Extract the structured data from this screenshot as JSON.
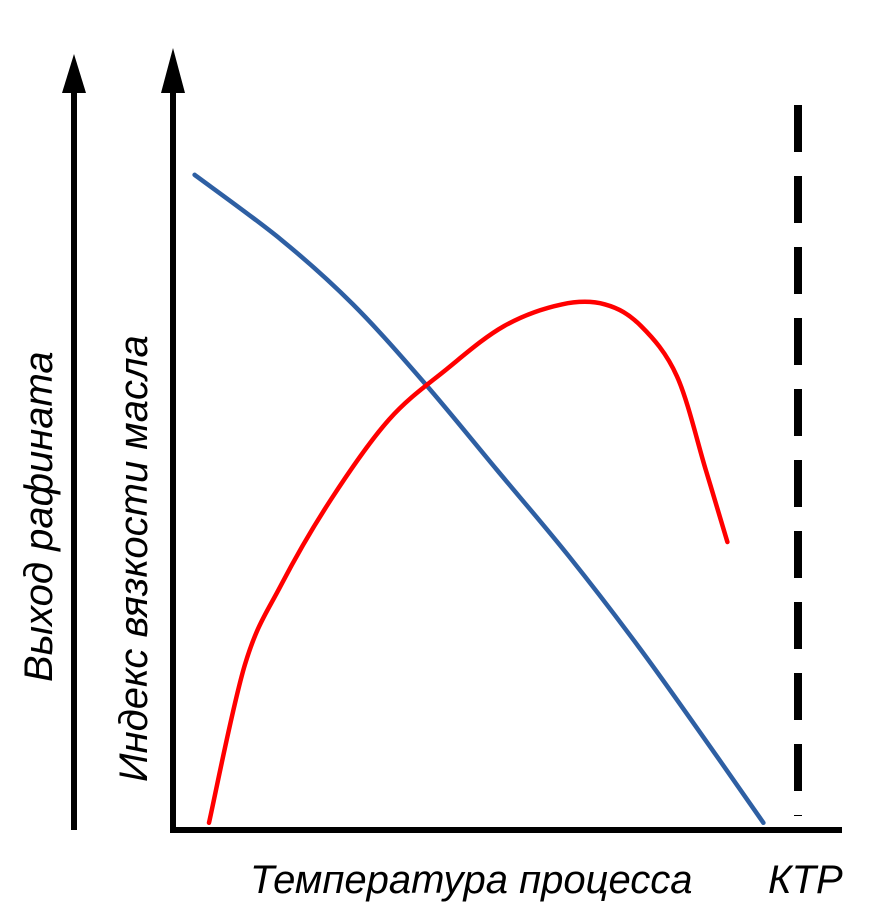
{
  "chart_data": {
    "type": "line",
    "title": "",
    "xlabel": "Температура процесса",
    "ylabels": [
      "Выход рафината",
      "Индекс вязкости масла"
    ],
    "grid": false,
    "legend": "none",
    "xlim": [
      0,
      100
    ],
    "ylim": [
      0,
      100
    ],
    "series": [
      {
        "color": "#2e5fa3",
        "x": [
          3,
          15,
          25,
          35,
          45,
          55,
          65,
          75,
          82
        ],
        "y": [
          91,
          82,
          73,
          62,
          50,
          38,
          25,
          11,
          1
        ]
      },
      {
        "color": "#ff0000",
        "x": [
          5,
          10,
          15,
          22,
          30,
          38,
          46,
          54,
          60,
          65,
          70,
          74,
          77
        ],
        "y": [
          1,
          23,
          34,
          46,
          57,
          64,
          70,
          73,
          73,
          70,
          63,
          50,
          40
        ]
      }
    ],
    "reference_line": {
      "label": "КТР",
      "style": "dashed",
      "color": "#000000"
    }
  }
}
